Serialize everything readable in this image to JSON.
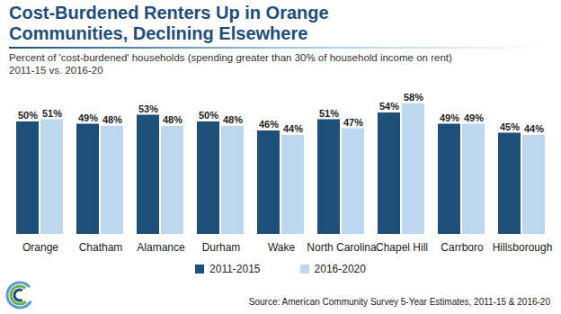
{
  "chart_data": {
    "type": "bar",
    "title": "Cost-Burdened Renters Up in Orange Communities, Declining Elsewhere",
    "subtitle": "Percent of 'cost-burdened' households (spending greater than 30% of household income on rent) 2011-15 vs. 2016-20",
    "source": "Source: American Community Survey 5-Year Estimates, 2011-15 & 2016-20",
    "categories": [
      "Orange",
      "Chatham",
      "Alamance",
      "Durham",
      "Wake",
      "North Carolina",
      "Chapel Hill",
      "Carrboro",
      "Hillsborough"
    ],
    "series": [
      {
        "name": "2011-2015",
        "color": "#1f4e79",
        "values": [
          50,
          49,
          53,
          50,
          46,
          51,
          54,
          49,
          45
        ],
        "value_labels": [
          "50%",
          "49%",
          "53%",
          "50%",
          "46%",
          "51%",
          "54%",
          "49%",
          "45%"
        ]
      },
      {
        "name": "2016-2020",
        "color": "#bdd7ee",
        "values": [
          51,
          48,
          48,
          48,
          44,
          47,
          58,
          49,
          44
        ],
        "value_labels": [
          "51%",
          "48%",
          "48%",
          "48%",
          "44%",
          "47%",
          "58%",
          "49%",
          "44%"
        ]
      }
    ],
    "ylim": [
      0,
      60
    ],
    "data_labels": true,
    "tick_labels": "x",
    "legend": "bottom"
  }
}
